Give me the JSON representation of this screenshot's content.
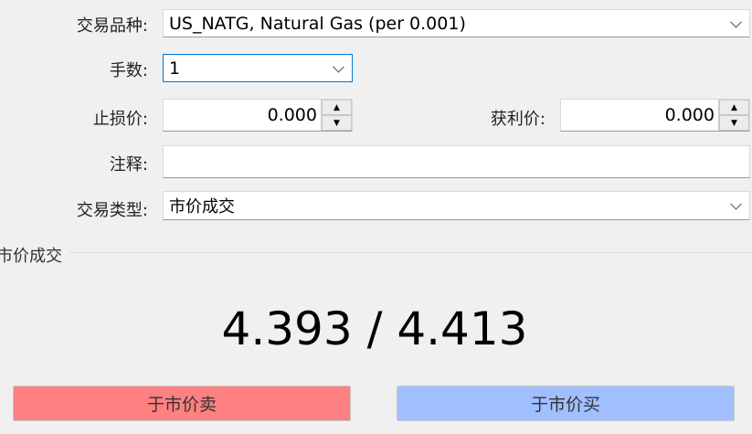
{
  "form": {
    "symbol_label": "交易品种:",
    "symbol_value": "US_NATG, Natural Gas (per 0.001)",
    "volume_label": "手数:",
    "volume_value": "1",
    "sl_label": "止损价:",
    "sl_value": "0.000",
    "tp_label": "获利价:",
    "tp_value": "0.000",
    "comment_label": "注释:",
    "comment_value": "",
    "type_label": "交易类型:",
    "type_value": "市价成交"
  },
  "market": {
    "group_title": "市价成交",
    "bid": "4.393",
    "separator": " / ",
    "ask": "4.413",
    "sell_label": "于市价卖",
    "buy_label": "于市价买",
    "sell_color": "#ff8080",
    "buy_color": "#a0bfff"
  }
}
